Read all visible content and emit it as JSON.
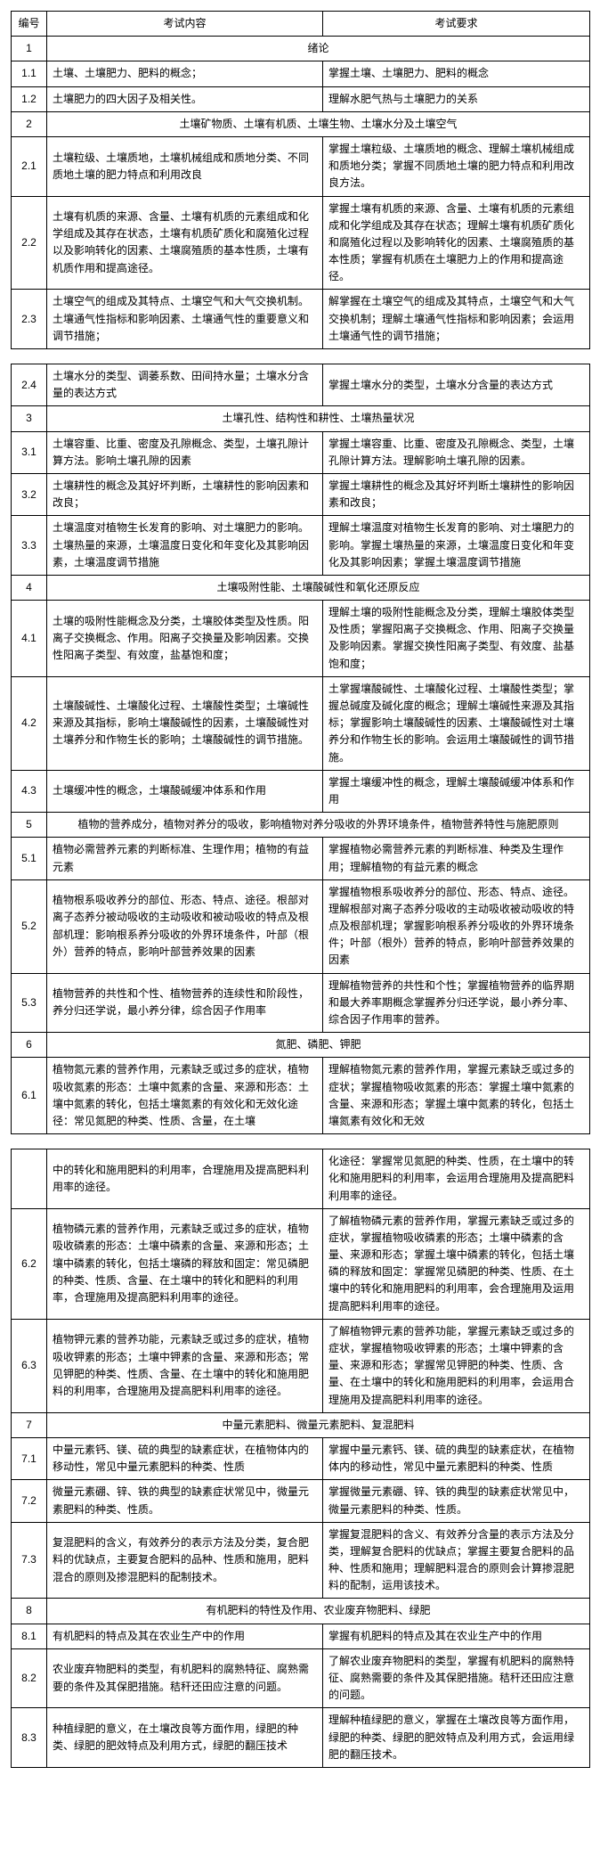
{
  "headers": {
    "no": "编号",
    "content": "考试内容",
    "req": "考试要求"
  },
  "table1": [
    {
      "no": "1",
      "content": "绪论",
      "span": true
    },
    {
      "no": "1.1",
      "content": "土壤、土壤肥力、肥料的概念；",
      "req": "掌握土壤、土壤肥力、肥料的概念"
    },
    {
      "no": "1.2",
      "content": "土壤肥力的四大因子及相关性。",
      "req": "理解水肥气热与土壤肥力的关系"
    },
    {
      "no": "2",
      "content": "土壤矿物质、土壤有机质、土壤生物、土壤水分及土壤空气",
      "span": true
    },
    {
      "no": "2.1",
      "content": "土壤粒级、土壤质地，土壤机械组成和质地分类、不同质地土壤的肥力特点和利用改良",
      "req": "掌握土壤粒级、土壤质地的概念、理解土壤机械组成和质地分类；掌握不同质地土壤的肥力特点和利用改良方法。"
    },
    {
      "no": "2.2",
      "content": "土壤有机质的来源、含量、土壤有机质的元素组成和化学组成及其存在状态，土壤有机质矿质化和腐殖化过程以及影响转化的因素、土壤腐殖质的基本性质，土壤有机质作用和提高途径。",
      "req": "掌握土壤有机质的来源、含量、土壤有机质的元素组成和化学组成及其存在状态；理解土壤有机质矿质化和腐殖化过程以及影响转化的因素、土壤腐殖质的基本性质；掌握有机质在土壤肥力上的作用和提高途径。"
    },
    {
      "no": "2.3",
      "content": "土壤空气的组成及其特点、土壤空气和大气交换机制。土壤通气性指标和影响因素、土壤通气性的重要意义和调节措施；",
      "req": "解掌握在土壤空气的组成及其特点，土壤空气和大气交换机制；理解土壤通气性指标和影响因素；会运用土壤通气性的调节措施；"
    }
  ],
  "table2": [
    {
      "no": "2.4",
      "content": "土壤水分的类型、调萎系数、田间持水量；土壤水分含量的表达方式",
      "req": "掌握土壤水分的类型，土壤水分含量的表达方式"
    },
    {
      "no": "3",
      "content": "土壤孔性、结构性和耕性、土壤热量状况",
      "span": true
    },
    {
      "no": "3.1",
      "content": "土壤容重、比重、密度及孔隙概念、类型，土壤孔隙计算方法。影响土壤孔隙的因素",
      "req": "掌握土壤容重、比重、密度及孔隙概念、类型，土壤孔隙计算方法。理解影响土壤孔隙的因素。"
    },
    {
      "no": "3.2",
      "content": "土壤耕性的概念及其好坏判断，土壤耕性的影响因素和改良；",
      "req": "掌握土壤耕性的概念及其好坏判断土壤耕性的影响因素和改良；"
    },
    {
      "no": "3.3",
      "content": "土壤温度对植物生长发育的影响、对土壤肥力的影响。土壤热量的来源，土壤温度日变化和年变化及其影响因素，土壤温度调节措施",
      "req": "理解土壤温度对植物生长发育的影响、对土壤肥力的影响。掌握土壤热量的来源，土壤温度日变化和年变化及其影响因素；掌握土壤温度调节措施"
    },
    {
      "no": "4",
      "content": "土壤吸附性能、土壤酸碱性和氧化还原反应",
      "span": true
    },
    {
      "no": "4.1",
      "content": "土壤的吸附性能概念及分类，土壤胶体类型及性质。阳离子交换概念、作用。阳离子交换量及影响因素。交换性阳离子类型、有效度，盐基饱和度；",
      "req": "理解土壤的吸附性能概念及分类，理解土壤胶体类型及性质；掌握阳离子交换概念、作用、阳离子交换量及影响因素。掌握交换性阳离子类型、有效度、盐基饱和度；"
    },
    {
      "no": "4.2",
      "content": "土壤酸碱性、土壤酸化过程、土壤酸性类型；土壤碱性来源及其指标，影响土壤酸碱性的因素，土壤酸碱性对土壤养分和作物生长的影响；土壤酸碱性的调节措施。",
      "req": "土掌握壤酸碱性、土壤酸化过程、土壤酸性类型；掌握总碱度及碱化度的概念；理解土壤碱性来源及其指标；掌握影响土壤酸碱性的因素、土壤酸碱性对土壤养分和作物生长的影响。会运用土壤酸碱性的调节措施。"
    },
    {
      "no": "4.3",
      "content": "土壤缓冲性的概念，土壤酸碱缓冲体系和作用",
      "req": "掌握土壤缓冲性的概念，理解土壤酸碱缓冲体系和作用"
    },
    {
      "no": "5",
      "content": "植物的营养成分，植物对养分的吸收，影响植物对养分吸收的外界环境条件，植物营养特性与施肥原则",
      "span": true
    },
    {
      "no": "5.1",
      "content": "植物必需营养元素的判断标准、生理作用；植物的有益元素",
      "req": "掌握植物必需营养元素的判断标准、种类及生理作用；理解植物的有益元素的概念"
    },
    {
      "no": "5.2",
      "content": "植物根系吸收养分的部位、形态、特点、途径。根部对离子态养分被动吸收的主动吸收和被动吸收的特点及根部机理：影响根系养分吸收的外界环境条件，叶部（根外）营养的特点，影响叶部营养效果的因素",
      "req": "掌握植物根系吸收养分的部位、形态、特点、途径。理解根部对离子态养分吸收的主动吸收被动吸收的特点及根部机理；掌握影响根系养分吸收的外界环境条件；叶部（根外）营养的特点，影响叶部营养效果的因素"
    },
    {
      "no": "5.3",
      "content": "植物营养的共性和个性、植物营养的连续性和阶段性，养分归还学说，最小养分律，综合因子作用率",
      "req": "理解植物营养的共性和个性；掌握植物营养的临界期和最大养率期概念掌握养分归还学说，最小养分率、综合因子作用率的营养。"
    },
    {
      "no": "6",
      "content": "氮肥、磷肥、钾肥",
      "span": true
    },
    {
      "no": "6.1",
      "content": "植物氮元素的营养作用，元素缺乏或过多的症状，植物吸收氮素的形态：土壤中氮素的含量、来源和形态：土壤中氮素的转化，包括土壤氮素的有效化和无效化途径：常见氮肥的种类、性质、含量，在土壤",
      "req": "理解植物氮元素的营养作用，掌握元素缺乏或过多的症状；掌握植物吸收氮素的形态：掌握土壤中氮素的含量、来源和形态；掌握土壤中氮素的转化，包括土壤氮素有效化和无效"
    }
  ],
  "table3": [
    {
      "no": "",
      "content": "中的转化和施用肥料的利用率，合理施用及提高肥料利用率的途径。",
      "req": "化途径：掌握常见氮肥的种类、性质，在土壤中的转化和施用肥料的利用率，会运用合理施用及提高肥料利用率的途径。"
    },
    {
      "no": "6.2",
      "content": "植物磷元素的营养作用，元素缺乏或过多的症状，植物吸收磷素的形态：土壤中磷素的含量、来源和形态；土壤中磷素的转化，包括土壤磷的释放和固定：常见磷肥的种类、性质、含量、在土壤中的转化和肥料的利用率，合理施用及提高肥料利用率的途径。",
      "req": "了解植物磷元素的营养作用，掌握元素缺乏或过多的症状，掌握植物吸收磷素的形态；土壤中磷素的含量、来源和形态；掌握土壤中磷素的转化，包括土壤磷的释放和固定：掌握常见磷肥的种类、性质、在土壤中的转化和施用肥料的利用率，会合理施用及运用提高肥料利用率的途径。"
    },
    {
      "no": "6.3",
      "content": "植物钾元素的营养功能，元素缺乏或过多的症状，植物吸收钾素的形态；土壤中钾素的含量、来源和形态；常见钾肥的种类、性质、含量、在土壤中的转化和施用肥料的利用率，合理施用及提高肥料利用率的途径。",
      "req": "了解植物钾元素的营养功能，掌握元素缺乏或过多的症状，掌握植物吸收钾素的形态；土壤中钾素的含量、来源和形态；掌握常见钾肥的种类、性质、含量、在土壤中的转化和施用肥料的利用率，会运用合理施用及提高肥料利用率的途径。"
    },
    {
      "no": "7",
      "content": "中量元素肥料、微量元素肥料、复混肥料",
      "span": true
    },
    {
      "no": "7.1",
      "content": "中量元素钙、镁、硫的典型的缺素症状，在植物体内的移动性，常见中量元素肥料的种类、性质",
      "req": "掌握中量元素钙、镁、硫的典型的缺素症状，在植物体内的移动性，常见中量元素肥料的种类、性质"
    },
    {
      "no": "7.2",
      "content": "微量元素硼、锌、铁的典型的缺素症状常见中，微量元素肥料的种类、性质。",
      "req": "掌握微量元素硼、锌、铁的典型的缺素症状常见中，微量元素肥料的种类、性质。"
    },
    {
      "no": "7.3",
      "content": "复混肥料的含义，有效养分的表示方法及分类，复合肥料的优缺点，主要复合肥料的品种、性质和施用，肥料混合的原则及掺混肥料的配制技术。",
      "req": "掌握复混肥料的含义、有效养分含量的表示方法及分类，理解复合肥料的优缺点；掌握主要复合肥料的品种、性质和施用；理解肥料混合的原则会计算掺混肥料的配制，运用该技术。"
    },
    {
      "no": "8",
      "content": "有机肥料的特性及作用、农业废弃物肥料、绿肥",
      "span": true
    },
    {
      "no": "8.1",
      "content": "有机肥料的特点及其在农业生产中的作用",
      "req": "掌握有机肥料的特点及其在农业生产中的作用"
    },
    {
      "no": "8.2",
      "content": "农业废弃物肥料的类型，有机肥料的腐熟特征、腐熟需要的条件及其保肥措施。秸秆还田应注意的问题。",
      "req": "了解农业废弃物肥料的类型，掌握有机肥料的腐熟特征、腐熟需要的条件及其保肥措施。秸秆还田应注意的问题。"
    },
    {
      "no": "8.3",
      "content": "种植绿肥的意义，在土壤改良等方面作用，绿肥的种类、绿肥的肥效特点及利用方式，绿肥的翻压技术",
      "req": "理解种植绿肥的意义，掌握在土壤改良等方面作用，绿肥的种类、绿肥的肥效特点及利用方式，会运用绿肥的翻压技术。"
    }
  ]
}
